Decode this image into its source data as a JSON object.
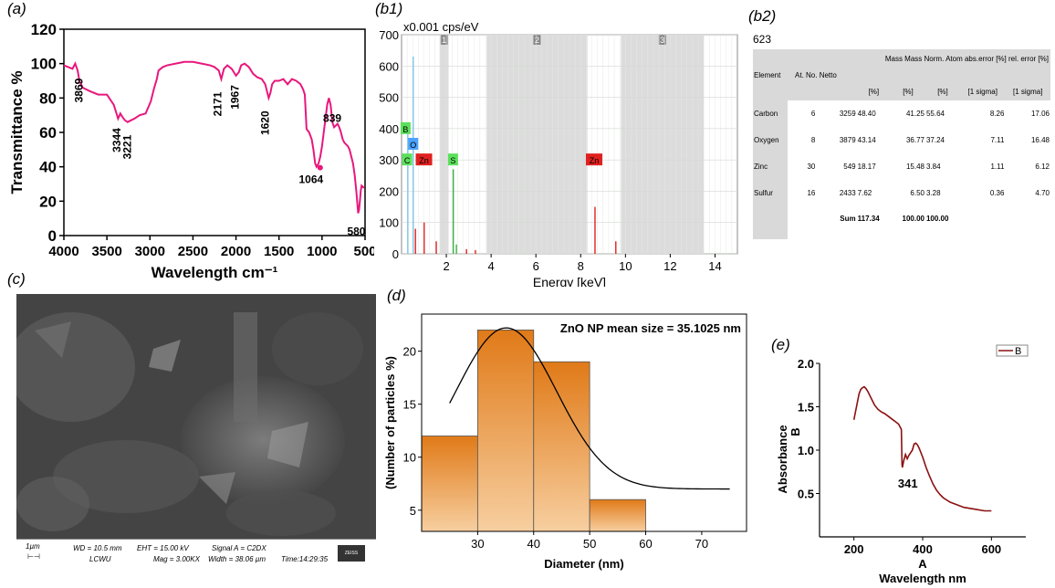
{
  "panels": {
    "a": "(a)",
    "b1": "(b1)",
    "b2": "(b2)",
    "c": "(c)",
    "d": "(d)",
    "e": "(e)"
  },
  "chart_data": [
    {
      "id": "ftir",
      "type": "line",
      "xlabel": "Wavelength cm⁻¹",
      "ylabel": "Transmittance %",
      "xlim": [
        4000,
        500
      ],
      "ylim": [
        0,
        120
      ],
      "xticks": [
        4000,
        3500,
        3000,
        2500,
        2000,
        1500,
        1000,
        500
      ],
      "yticks": [
        0,
        20,
        40,
        60,
        80,
        100,
        120
      ],
      "color": "#e8177d",
      "series": [
        {
          "name": "FTIR",
          "x": [
            4000,
            3950,
            3900,
            3869,
            3840,
            3820,
            3780,
            3700,
            3600,
            3500,
            3420,
            3370,
            3344,
            3320,
            3290,
            3260,
            3221,
            3180,
            3120,
            3050,
            2990,
            2950,
            2920,
            2900,
            2850,
            2800,
            2700,
            2600,
            2500,
            2400,
            2300,
            2250,
            2200,
            2171,
            2140,
            2100,
            2050,
            2000,
            1967,
            1940,
            1900,
            1850,
            1800,
            1750,
            1700,
            1660,
            1630,
            1620,
            1600,
            1580,
            1550,
            1500,
            1450,
            1400,
            1350,
            1300,
            1250,
            1220,
            1200,
            1180,
            1150,
            1120,
            1100,
            1080,
            1064,
            1040,
            1020,
            1000,
            980,
            960,
            940,
            920,
            900,
            880,
            860,
            839,
            820,
            800,
            780,
            760,
            740,
            720,
            700,
            680,
            660,
            640,
            620,
            600,
            580,
            570,
            560,
            550,
            540,
            520,
            510
          ],
          "y": [
            99,
            98,
            97,
            100,
            96,
            90,
            86,
            84,
            82,
            82,
            76,
            68,
            71,
            69,
            67,
            66,
            67,
            68,
            70,
            71,
            78,
            86,
            91,
            96,
            98,
            99,
            100,
            101,
            101,
            100,
            99,
            98,
            96,
            91,
            97,
            99,
            97,
            93,
            95,
            99,
            100,
            98,
            94,
            92,
            91,
            88,
            82,
            80,
            83,
            88,
            90,
            90,
            91,
            88,
            91,
            90,
            88,
            85,
            82,
            62,
            60,
            56,
            50,
            42,
            40,
            42,
            46,
            52,
            60,
            68,
            76,
            80,
            76,
            66,
            63,
            64,
            65,
            63,
            60,
            56,
            54,
            53,
            52,
            50,
            46,
            42,
            35,
            25,
            13,
            15,
            20,
            26,
            29,
            28,
            28
          ]
        }
      ],
      "annotations": [
        {
          "text": "3869",
          "x": 3869,
          "y": 100
        },
        {
          "text": "3344",
          "x": 3344,
          "y": 70
        },
        {
          "text": "3221",
          "x": 3221,
          "y": 66
        },
        {
          "text": "2171",
          "x": 2171,
          "y": 91
        },
        {
          "text": "1967",
          "x": 1967,
          "y": 95
        },
        {
          "text": "1620",
          "x": 1620,
          "y": 80
        },
        {
          "text": "1064",
          "x": 1064,
          "y": 40
        },
        {
          "text": "839",
          "x": 839,
          "y": 64
        },
        {
          "text": "580",
          "x": 580,
          "y": 13
        }
      ]
    },
    {
      "id": "eds",
      "type": "bar",
      "title": "x0.001 cps/eV",
      "xlabel": "Energy [keV]",
      "xlim": [
        0,
        15
      ],
      "ylim": [
        0,
        700
      ],
      "xticks": [
        2,
        4,
        6,
        8,
        10,
        12,
        14
      ],
      "yticks": [
        0,
        100,
        200,
        300,
        400,
        500,
        600,
        700
      ],
      "regions": [
        {
          "label": "1",
          "from": 1.7,
          "to": 2.1
        },
        {
          "label": "2",
          "from": 3.8,
          "to": 8.3
        },
        {
          "label": "3",
          "from": 9.8,
          "to": 13.5
        }
      ],
      "peaks": [
        {
          "x": 0.28,
          "y": 390
        },
        {
          "x": 0.52,
          "y": 630
        },
        {
          "x": 0.62,
          "y": 80
        },
        {
          "x": 1.01,
          "y": 100
        },
        {
          "x": 1.55,
          "y": 40
        },
        {
          "x": 2.31,
          "y": 270
        },
        {
          "x": 2.45,
          "y": 30
        },
        {
          "x": 2.9,
          "y": 15
        },
        {
          "x": 3.3,
          "y": 12
        },
        {
          "x": 8.64,
          "y": 150
        },
        {
          "x": 9.57,
          "y": 40
        }
      ],
      "element_labels": [
        {
          "text": "B",
          "x": 0.18,
          "y": 400,
          "color": "#5ce05c"
        },
        {
          "text": "O",
          "x": 0.52,
          "y": 350,
          "color": "#4aa3ff"
        },
        {
          "text": "C",
          "x": 0.25,
          "y": 300,
          "color": "#5ce05c"
        },
        {
          "text": "Zn",
          "x": 1.0,
          "y": 300,
          "color": "#e02020"
        },
        {
          "text": "S",
          "x": 2.3,
          "y": 300,
          "color": "#5ce05c"
        },
        {
          "text": "Zn",
          "x": 8.6,
          "y": 300,
          "color": "#e02020"
        }
      ]
    },
    {
      "id": "size_distribution",
      "type": "bar",
      "title": "ZnO NP mean size = 35.1025 nm",
      "xlabel": "Diameter (nm)",
      "ylabel": "(Number of particles %)",
      "xlim": [
        20,
        78
      ],
      "ylim": [
        3,
        23.5
      ],
      "xticks": [
        30,
        40,
        50,
        60,
        70
      ],
      "yticks": [
        5,
        10,
        15,
        20
      ],
      "bins": [
        {
          "from": 20,
          "to": 30,
          "value": 12
        },
        {
          "from": 30,
          "to": 40,
          "value": 22
        },
        {
          "from": 40,
          "to": 50,
          "value": 19
        },
        {
          "from": 50,
          "to": 60,
          "value": 6
        }
      ],
      "fit_curve": {
        "type": "gaussian",
        "x_from": 25,
        "x_to": 75,
        "baseline": 7,
        "amplitude": 15.2,
        "mean": 35.1025,
        "sigma": 9
      }
    },
    {
      "id": "uv_vis",
      "type": "line",
      "xlabel": "A",
      "xlabel2": "Wavelength nm",
      "ylabel": "B",
      "ylabel2": "Absorbance",
      "legend": "B",
      "xlim": [
        100,
        700
      ],
      "ylim": [
        0,
        2.0
      ],
      "xticks": [
        200,
        400,
        600
      ],
      "yticks": [
        0.5,
        1.0,
        1.5,
        2.0
      ],
      "color": "#8b1010",
      "series": [
        {
          "name": "B",
          "x": [
            200,
            205,
            210,
            215,
            220,
            225,
            230,
            235,
            240,
            245,
            250,
            260,
            270,
            280,
            290,
            300,
            310,
            320,
            330,
            338,
            340,
            341,
            345,
            350,
            355,
            360,
            365,
            370,
            375,
            380,
            385,
            390,
            400,
            410,
            420,
            430,
            440,
            450,
            460,
            480,
            500,
            520,
            550,
            580,
            600
          ],
          "y": [
            1.35,
            1.45,
            1.55,
            1.65,
            1.7,
            1.72,
            1.73,
            1.71,
            1.68,
            1.64,
            1.6,
            1.52,
            1.47,
            1.44,
            1.42,
            1.39,
            1.36,
            1.33,
            1.3,
            1.24,
            0.83,
            0.8,
            0.88,
            0.95,
            0.9,
            0.94,
            0.97,
            1.0,
            1.07,
            1.08,
            1.06,
            1.02,
            0.92,
            0.8,
            0.7,
            0.61,
            0.54,
            0.49,
            0.45,
            0.4,
            0.37,
            0.34,
            0.32,
            0.3,
            0.3
          ]
        }
      ],
      "annotation": {
        "text": "341",
        "x": 341,
        "y": 0.8
      }
    }
  ],
  "eds_table": {
    "spectrum_id": "623",
    "header_top": "Mass Mass Norm. Atom abs.error [%] rel. error [%]",
    "columns": [
      "Element",
      "At. No.",
      "Netto",
      "Mass [%]",
      "Mass Norm. [%]",
      "Atom [%]",
      "abs.error [%] [1 sigma]",
      "rel. error [%] [1 sigma]"
    ],
    "units": [
      "[%]",
      "[%]",
      "[%]",
      "[1 sigma]",
      "[1 sigma]"
    ],
    "rows": [
      [
        "Carbon",
        "6",
        "3259",
        "48.40",
        "41.25",
        "55.64",
        "8.26",
        "17.06"
      ],
      [
        "Oxygen",
        "8",
        "3879",
        "43.14",
        "36.77",
        "37.24",
        "7.11",
        "16.48"
      ],
      [
        "Zinc",
        "30",
        "549",
        "18.17",
        "15.48",
        "3.84",
        "1.11",
        "6.12"
      ],
      [
        "Sulfur",
        "16",
        "2433",
        "7.62",
        "6.50",
        "3.28",
        "0.36",
        "4.70"
      ]
    ],
    "sum_label": "Sum",
    "sum": [
      "117.34",
      "100.00",
      "100.00"
    ]
  },
  "sem": {
    "scale": "1µm",
    "wd": "WD = 10.5 mm",
    "eht": "EHT = 15.00 kV",
    "signal": "Signal A = C2DX",
    "lab": "LCWU",
    "mag": "Mag = 3.00KX",
    "width": "Width = 38.06 µm",
    "time": "Time:14:29:35",
    "logo": "ZEISS"
  }
}
